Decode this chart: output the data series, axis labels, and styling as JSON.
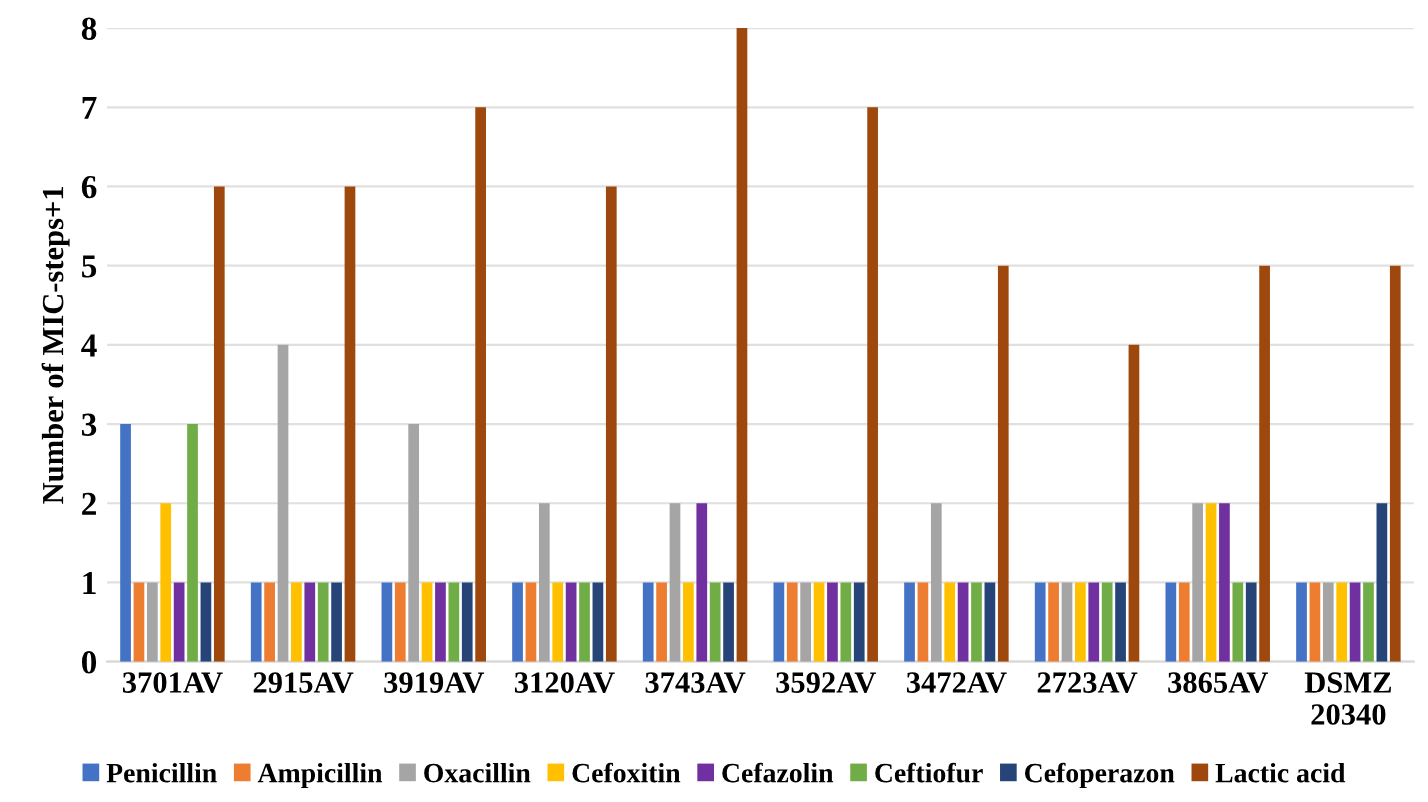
{
  "chart_data": {
    "type": "bar",
    "ylabel": "Number of MIC-steps+1",
    "categories": [
      "3701AV",
      "2915AV",
      "3919AV",
      "3120AV",
      "3743AV",
      "3592AV",
      "3472AV",
      "2723AV",
      "3865AV",
      "DSMZ\n20340"
    ],
    "series": [
      {
        "name": "Penicillin",
        "color": "#4472c4",
        "values": [
          3,
          1,
          1,
          1,
          1,
          1,
          1,
          1,
          1,
          1
        ]
      },
      {
        "name": "Ampicillin",
        "color": "#ed7d31",
        "values": [
          1,
          1,
          1,
          1,
          1,
          1,
          1,
          1,
          1,
          1
        ]
      },
      {
        "name": "Oxacillin",
        "color": "#a5a5a5",
        "values": [
          1,
          4,
          3,
          2,
          2,
          1,
          2,
          1,
          2,
          1
        ]
      },
      {
        "name": "Cefoxitin",
        "color": "#ffc000",
        "values": [
          2,
          1,
          1,
          1,
          1,
          1,
          1,
          1,
          2,
          1
        ]
      },
      {
        "name": "Cefazolin",
        "color": "#7030a0",
        "values": [
          1,
          1,
          1,
          1,
          2,
          1,
          1,
          1,
          2,
          1
        ]
      },
      {
        "name": "Ceftiofur",
        "color": "#70ad47",
        "values": [
          3,
          1,
          1,
          1,
          1,
          1,
          1,
          1,
          1,
          1
        ]
      },
      {
        "name": "Cefoperazon",
        "color": "#264478",
        "values": [
          1,
          1,
          1,
          1,
          1,
          1,
          1,
          1,
          1,
          2
        ]
      },
      {
        "name": "Lactic acid",
        "color": "#9e480e",
        "values": [
          6,
          6,
          7,
          6,
          8,
          7,
          5,
          4,
          5,
          5
        ]
      }
    ],
    "ylim": [
      0,
      8
    ],
    "yticks": [
      0,
      1,
      2,
      3,
      4,
      5,
      6,
      7,
      8
    ],
    "grid": "y",
    "legend": "bottom"
  }
}
